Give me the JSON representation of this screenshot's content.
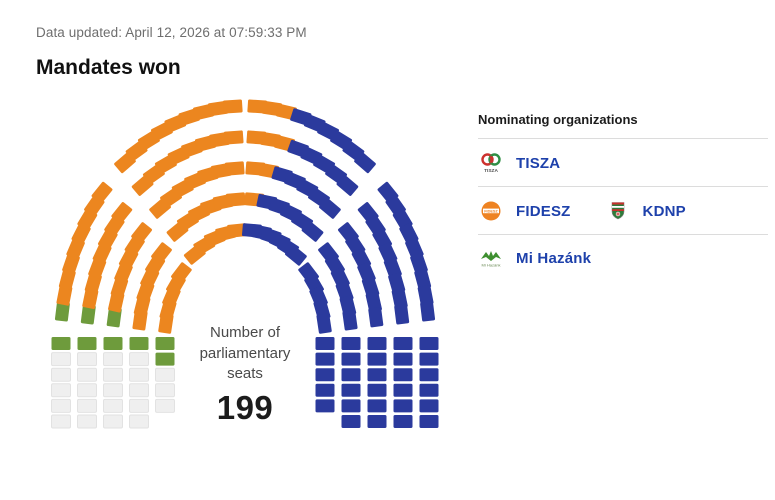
{
  "header": {
    "updated_label": "Data updated: April 12, 2026 at 07:59:33 PM",
    "title": "Mandates won"
  },
  "chart": {
    "center_label_lines": [
      "Number of",
      "parliamentary",
      "seats"
    ],
    "total_seats": "199"
  },
  "legend": {
    "title": "Nominating organizations",
    "rows": [
      {
        "id": "tisza",
        "parties": [
          {
            "name": "TISZA",
            "logo": "tisza"
          }
        ]
      },
      {
        "id": "fidesz-kdnp",
        "parties": [
          {
            "name": "FIDESZ",
            "logo": "fidesz"
          },
          {
            "name": "KDNP",
            "logo": "kdnp"
          }
        ]
      },
      {
        "id": "mi-hazank",
        "parties": [
          {
            "name": "Mi Hazánk",
            "logo": "mihazank"
          }
        ]
      }
    ]
  },
  "colors": {
    "seat_orange": "#EC861F",
    "seat_blue": "#2B3A9D",
    "seat_green": "#6E9B3C",
    "seat_gray": "#EFEFEF",
    "seat_gray_border": "#E2E2E2",
    "legend_label_blue": "#1E41AB",
    "divider": "#DCDCDC",
    "muted_text": "#6E6E6E"
  },
  "seating": {
    "palette": {
      "orange": "#EC861F",
      "blue": "#2B3A9D",
      "green": "#6E9B3C",
      "gray": "#EFEFEF"
    },
    "left_block_cols": [
      [
        "green",
        "gray",
        "gray",
        "gray",
        "gray",
        "gray"
      ],
      [
        "green",
        "gray",
        "gray",
        "gray",
        "gray",
        "gray"
      ],
      [
        "green",
        "gray",
        "gray",
        "gray",
        "gray",
        "gray"
      ],
      [
        "green",
        "gray",
        "gray",
        "gray",
        "gray",
        "gray"
      ],
      [
        "green",
        "green",
        "gray",
        "gray",
        "gray"
      ]
    ],
    "right_block_cols": [
      [
        "blue",
        "blue",
        "blue",
        "blue",
        "blue"
      ],
      [
        "blue",
        "blue",
        "blue",
        "blue",
        "blue",
        "blue"
      ],
      [
        "blue",
        "blue",
        "blue",
        "blue",
        "blue",
        "blue"
      ],
      [
        "blue",
        "blue",
        "blue",
        "blue",
        "blue",
        "blue"
      ],
      [
        "blue",
        "blue",
        "blue",
        "blue",
        "blue",
        "blue"
      ]
    ],
    "wedges": [
      {
        "name": "left-lower",
        "alpha": [
          175,
          139
        ],
        "rings": [
          {
            "count": 5,
            "runs": [
              [
                "orange",
                5
              ]
            ]
          },
          {
            "count": 6,
            "runs": [
              [
                "orange",
                6
              ]
            ]
          },
          {
            "count": 7,
            "runs": [
              [
                "green",
                1
              ],
              [
                "orange",
                6
              ]
            ]
          },
          {
            "count": 8,
            "runs": [
              [
                "green",
                1
              ],
              [
                "orange",
                7
              ]
            ]
          },
          {
            "count": 9,
            "runs": [
              [
                "green",
                1
              ],
              [
                "orange",
                8
              ]
            ]
          }
        ]
      },
      {
        "name": "top-left",
        "alpha": [
          133,
          91.5
        ],
        "rings": [
          {
            "count": 5,
            "runs": [
              [
                "orange",
                5
              ]
            ]
          },
          {
            "count": 6,
            "runs": [
              [
                "orange",
                6
              ]
            ]
          },
          {
            "count": 7,
            "runs": [
              [
                "orange",
                7
              ]
            ]
          },
          {
            "count": 8,
            "runs": [
              [
                "orange",
                8
              ]
            ]
          },
          {
            "count": 9,
            "runs": [
              [
                "orange",
                9
              ]
            ]
          }
        ]
      },
      {
        "name": "top-right",
        "alpha": [
          88.5,
          47
        ],
        "rings": [
          {
            "count": 6,
            "runs": [
              [
                "blue",
                6
              ]
            ]
          },
          {
            "count": 6,
            "runs": [
              [
                "orange",
                1
              ],
              [
                "blue",
                5
              ]
            ]
          },
          {
            "count": 7,
            "runs": [
              [
                "orange",
                2
              ],
              [
                "blue",
                5
              ]
            ]
          },
          {
            "count": 8,
            "runs": [
              [
                "orange",
                3
              ],
              [
                "blue",
                5
              ]
            ]
          },
          {
            "count": 9,
            "runs": [
              [
                "orange",
                3
              ],
              [
                "blue",
                6
              ]
            ]
          }
        ]
      },
      {
        "name": "right-lower",
        "alpha": [
          41,
          5
        ],
        "rings": [
          {
            "count": 5,
            "runs": [
              [
                "blue",
                5
              ]
            ]
          },
          {
            "count": 6,
            "runs": [
              [
                "blue",
                6
              ]
            ]
          },
          {
            "count": 7,
            "runs": [
              [
                "blue",
                7
              ]
            ]
          },
          {
            "count": 8,
            "runs": [
              [
                "blue",
                8
              ]
            ]
          },
          {
            "count": 9,
            "runs": [
              [
                "blue",
                9
              ]
            ]
          }
        ]
      }
    ]
  },
  "chart_data": {
    "type": "parliament-hemicycle",
    "title": "Mandates won",
    "total_seats": 199,
    "center_label": "Number of parliamentary seats",
    "legend_title": "Nominating organizations",
    "series": [
      {
        "name": "FIDESZ-KDNP",
        "color": "#EC861F",
        "seats": 76,
        "position": "left-and-top"
      },
      {
        "name": "TISZA",
        "color": "#2B3A9D",
        "seats": 91,
        "position": "right"
      },
      {
        "name": "Mi Hazánk",
        "color": "#6E9B3C",
        "seats": 9,
        "position": "lower-left"
      },
      {
        "name": "Seats not yet allocated (no legend entry)",
        "color": "#EFEFEF",
        "seats": 23,
        "position": "far-left-block"
      }
    ],
    "layout_hints": {
      "rings": 5,
      "arc_wedges": 4,
      "straight_end_blocks": 2,
      "seats_per_end_block": 29
    }
  }
}
